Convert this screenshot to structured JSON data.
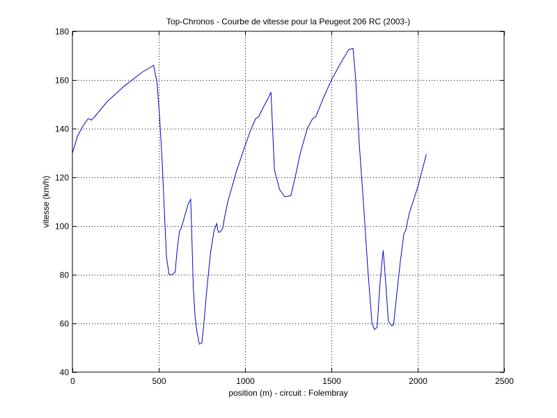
{
  "chart_data": {
    "type": "line",
    "title": "Top-Chronos - Courbe de vitesse pour la Peugeot 206 RC (2003-)",
    "xlabel": "position (m) - circuit : Folembray",
    "ylabel": "vitesse (km/h)",
    "xlim": [
      0,
      2500
    ],
    "ylim": [
      40,
      180
    ],
    "xticks": [
      0,
      500,
      1000,
      1500,
      2000,
      2500
    ],
    "yticks": [
      40,
      60,
      80,
      100,
      120,
      140,
      160,
      180
    ],
    "grid": true,
    "line_color": "#0000cc",
    "series": [
      {
        "x": [
          0,
          30,
          60,
          90,
          100,
          110,
          130,
          200,
          300,
          400,
          470,
          490,
          505,
          520,
          535,
          545,
          560,
          575,
          595,
          605,
          620,
          630,
          650,
          670,
          685,
          690,
          700,
          710,
          720,
          735,
          750,
          760,
          780,
          800,
          820,
          835,
          845,
          855,
          870,
          880,
          900,
          950,
          1000,
          1030,
          1060,
          1080,
          1100,
          1130,
          1150,
          1170,
          1200,
          1230,
          1265,
          1290,
          1320,
          1360,
          1390,
          1410,
          1450,
          1500,
          1550,
          1600,
          1625,
          1640,
          1660,
          1690,
          1710,
          1735,
          1750,
          1765,
          1780,
          1795,
          1800,
          1810,
          1830,
          1850,
          1860,
          1880,
          1900,
          1920,
          1930,
          1950,
          2000,
          2050
        ],
        "y": [
          130,
          137,
          141,
          144,
          144,
          143.5,
          145,
          151,
          157.5,
          163,
          166,
          159,
          145,
          126,
          102,
          87,
          80,
          80,
          81,
          89,
          98,
          99,
          104,
          109,
          111,
          100,
          75,
          63,
          57,
          51.5,
          52,
          59,
          75,
          89,
          98,
          101,
          97.5,
          97.5,
          99,
          103,
          110,
          122.5,
          133,
          139,
          144,
          145,
          148,
          152,
          155,
          123,
          115,
          112,
          112.5,
          120,
          130,
          140,
          144,
          145,
          152,
          160,
          166.5,
          172.5,
          173,
          161,
          135,
          105,
          83,
          60,
          57.5,
          58.5,
          75,
          87,
          90,
          81,
          61,
          59,
          59.5,
          73,
          86,
          97,
          98,
          105,
          116,
          129.5
        ]
      }
    ]
  }
}
